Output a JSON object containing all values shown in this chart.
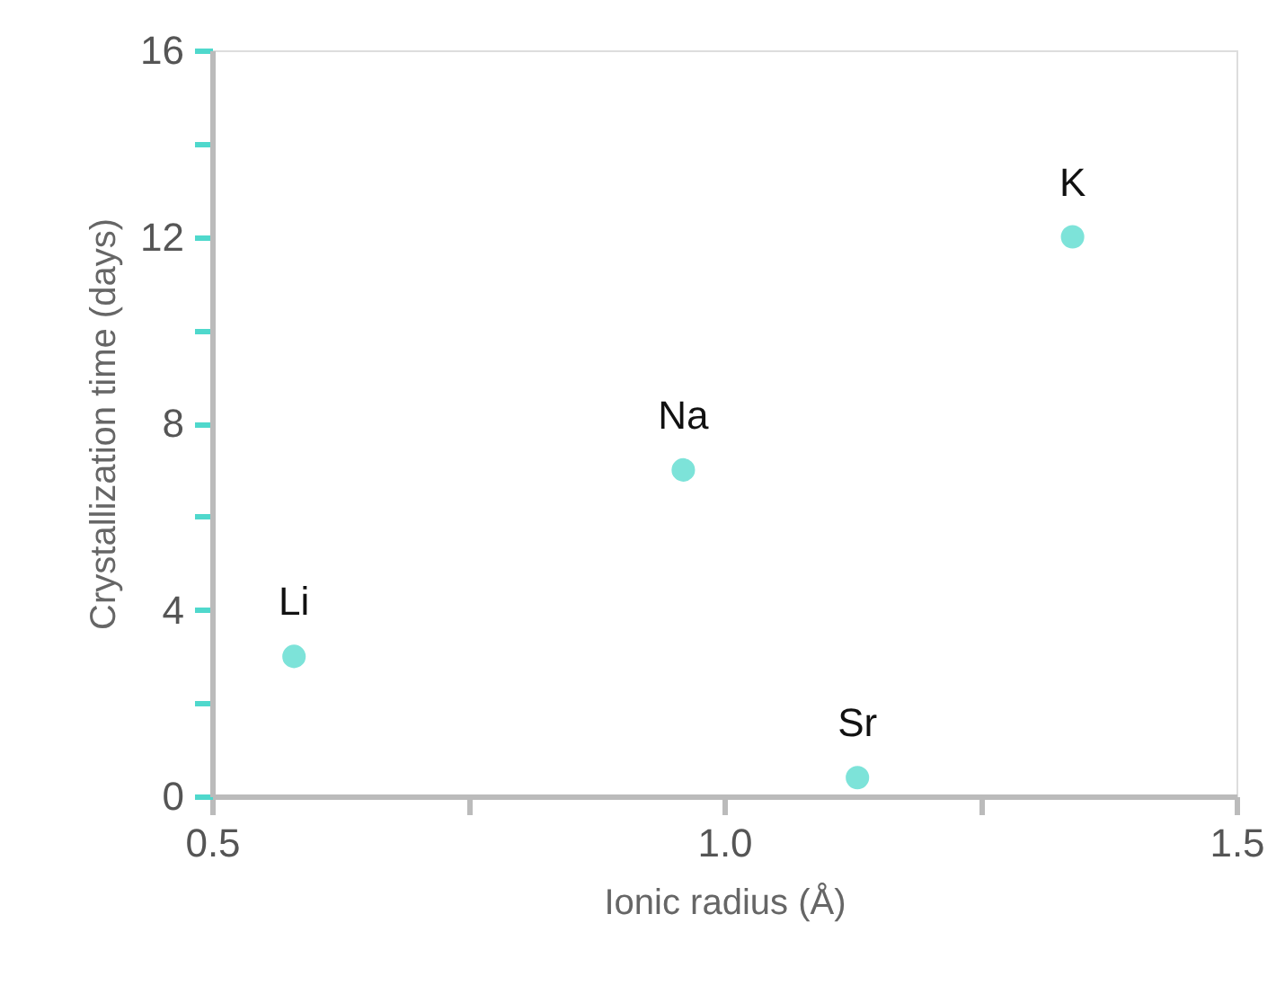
{
  "chart_data": {
    "type": "scatter",
    "xlabel": "Ionic radius (Å)",
    "ylabel": "Crystallization time (days)",
    "x": [
      0.58,
      0.96,
      1.13,
      1.34
    ],
    "series": [
      {
        "color": "#7de3d9",
        "values": [
          3,
          7,
          0.4,
          12
        ]
      }
    ],
    "annotations": [
      {
        "text": "Li",
        "x": 0.58,
        "y": 3
      },
      {
        "text": "Na",
        "x": 0.96,
        "y": 7
      },
      {
        "text": "Sr",
        "x": 1.13,
        "y": 0.4
      },
      {
        "text": "K",
        "x": 1.34,
        "y": 12
      }
    ],
    "xlim": [
      0.5,
      1.5
    ],
    "ylim": [
      0,
      16
    ],
    "xticks": [
      {
        "value": 0.5,
        "label": "0.5"
      },
      {
        "value": 0.75,
        "label": null
      },
      {
        "value": 1.0,
        "label": "1.0"
      },
      {
        "value": 1.25,
        "label": null
      },
      {
        "value": 1.5,
        "label": "1.5"
      }
    ],
    "yticks": [
      0,
      {
        "value": 2,
        "label": null
      },
      4,
      {
        "value": 6,
        "label": null
      },
      8,
      {
        "value": 10,
        "label": null
      },
      12,
      {
        "value": 14,
        "label": null
      },
      16
    ],
    "grid": false
  }
}
